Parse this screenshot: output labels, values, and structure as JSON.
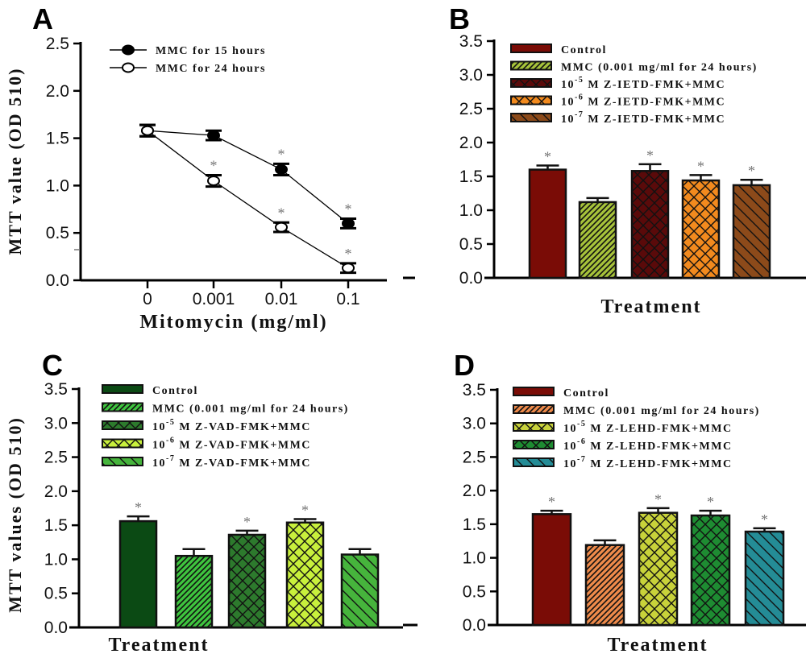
{
  "chart_data": [
    {
      "panel": "A",
      "type": "line",
      "xlabel": "Mitomycin (mg/ml)",
      "ylabel": "MTT value (OD 510)",
      "x": [
        "0",
        "0.001",
        "0.01",
        "0.1"
      ],
      "ylim": [
        0,
        2.5
      ],
      "yticks": [
        "0.0",
        "0.5",
        "1.0",
        "1.5",
        "2.0",
        "2.5"
      ],
      "legend_position": "top-left",
      "series": [
        {
          "name": "MMC for 15 hours",
          "marker": "filled-circle",
          "values": [
            1.58,
            1.53,
            1.17,
            0.6
          ],
          "errors": [
            0.06,
            0.05,
            0.06,
            0.05
          ],
          "significant": [
            false,
            false,
            true,
            true
          ]
        },
        {
          "name": "MMC for 24 hours",
          "marker": "open-circle",
          "values": [
            1.58,
            1.05,
            0.56,
            0.13
          ],
          "errors": [
            0.06,
            0.06,
            0.05,
            0.05
          ],
          "significant": [
            false,
            true,
            true,
            true
          ]
        }
      ]
    },
    {
      "panel": "B",
      "type": "bar",
      "xlabel": "Treatment",
      "ylabel": "",
      "ylim": [
        0,
        3.5
      ],
      "yticks": [
        "0.0",
        "0.5",
        "1.0",
        "1.5",
        "2.0",
        "2.5",
        "3.0",
        "3.5"
      ],
      "legend_position": "top",
      "categories": [
        "Control",
        "MMC (0.001 mg/ml for 24 hours)",
        "10^-5 M Z-IETD-FMK+MMC",
        "10^-6 M Z-IETD-FMK+MMC",
        "10^-7 M Z-IETD-FMK+MMC"
      ],
      "legend": [
        {
          "pre": "",
          "exp": "",
          "text": "Control",
          "color": "#7a0c06",
          "pattern": "solid"
        },
        {
          "pre": "",
          "exp": "",
          "text": "MMC (0.001 mg/ml for 24 hours)",
          "color": "#a6c23a",
          "pattern": "hatch"
        },
        {
          "pre": "10",
          "exp": "-5",
          "text": " M Z-IETD-FMK+MMC",
          "color": "#5a0a0a",
          "pattern": "cross"
        },
        {
          "pre": "10",
          "exp": "-6",
          "text": " M Z-IETD-FMK+MMC",
          "color": "#f28a1e",
          "pattern": "cross"
        },
        {
          "pre": "10",
          "exp": "-7",
          "text": " M Z-IETD-FMK+MMC",
          "color": "#8c4a1a",
          "pattern": "backslash"
        }
      ],
      "values": [
        1.6,
        1.12,
        1.58,
        1.44,
        1.37
      ],
      "errors": [
        0.06,
        0.06,
        0.1,
        0.08,
        0.08
      ],
      "significant": [
        true,
        false,
        true,
        true,
        true
      ]
    },
    {
      "panel": "C",
      "type": "bar",
      "xlabel": "Treatment",
      "ylabel": "MTT values (OD 510)",
      "ylim": [
        0,
        3.5
      ],
      "yticks": [
        "0.0",
        "0.5",
        "1.0",
        "1.5",
        "2.0",
        "2.5",
        "3.0",
        "3.5"
      ],
      "legend_position": "top",
      "categories": [
        "Control",
        "MMC (0.001 mg/ml for 24 hours)",
        "10^-5 M Z-VAD-FMK+MMC",
        "10^-6 M Z-VAD-FMK+MMC",
        "10^-7 M Z-VAD-FMK+MMC"
      ],
      "legend": [
        {
          "pre": "",
          "exp": "",
          "text": "Control",
          "color": "#0b4a14",
          "pattern": "solid"
        },
        {
          "pre": "",
          "exp": "",
          "text": "MMC (0.001 mg/ml for 24 hours)",
          "color": "#3ec43e",
          "pattern": "hatch"
        },
        {
          "pre": "10",
          "exp": "-5",
          "text": " M Z-VAD-FMK+MMC",
          "color": "#2d7a2d",
          "pattern": "cross"
        },
        {
          "pre": "10",
          "exp": "-6",
          "text": " M Z-VAD-FMK+MMC",
          "color": "#c8f03c",
          "pattern": "cross"
        },
        {
          "pre": "10",
          "exp": "-7",
          "text": " M Z-VAD-FMK+MMC",
          "color": "#46b43c",
          "pattern": "backslash"
        }
      ],
      "values": [
        1.56,
        1.05,
        1.36,
        1.54,
        1.07
      ],
      "errors": [
        0.07,
        0.1,
        0.06,
        0.05,
        0.08
      ],
      "significant": [
        true,
        false,
        true,
        true,
        false
      ]
    },
    {
      "panel": "D",
      "type": "bar",
      "xlabel": "Treatment",
      "ylabel": "",
      "ylim": [
        0,
        3.5
      ],
      "yticks": [
        "0.0",
        "0.5",
        "1.0",
        "1.5",
        "2.0",
        "2.5",
        "3.0",
        "3.5"
      ],
      "legend_position": "top",
      "categories": [
        "Control",
        "MMC (0.001 mg/ml for 24 hours)",
        "10^-5 M Z-LEHD-FMK+MMC",
        "10^-6 M Z-LEHD-FMK+MMC",
        "10^-7 M Z-LEHD-FMK+MMC"
      ],
      "legend": [
        {
          "pre": "",
          "exp": "",
          "text": "Control",
          "color": "#7a0c06",
          "pattern": "solid"
        },
        {
          "pre": "",
          "exp": "",
          "text": "MMC (0.001 mg/ml for 24 hours)",
          "color": "#ee8a4a",
          "pattern": "hatch"
        },
        {
          "pre": "10",
          "exp": "-5",
          "text": " M Z-LEHD-FMK+MMC",
          "color": "#c8d23a",
          "pattern": "cross"
        },
        {
          "pre": "10",
          "exp": "-6",
          "text": " M Z-LEHD-FMK+MMC",
          "color": "#1e8c32",
          "pattern": "cross"
        },
        {
          "pre": "10",
          "exp": "-7",
          "text": " M Z-LEHD-FMK+MMC",
          "color": "#248c96",
          "pattern": "backslash"
        }
      ],
      "values": [
        1.65,
        1.19,
        1.67,
        1.63,
        1.39
      ],
      "errors": [
        0.05,
        0.07,
        0.07,
        0.07,
        0.05
      ],
      "significant": [
        true,
        false,
        true,
        true,
        true
      ]
    }
  ]
}
